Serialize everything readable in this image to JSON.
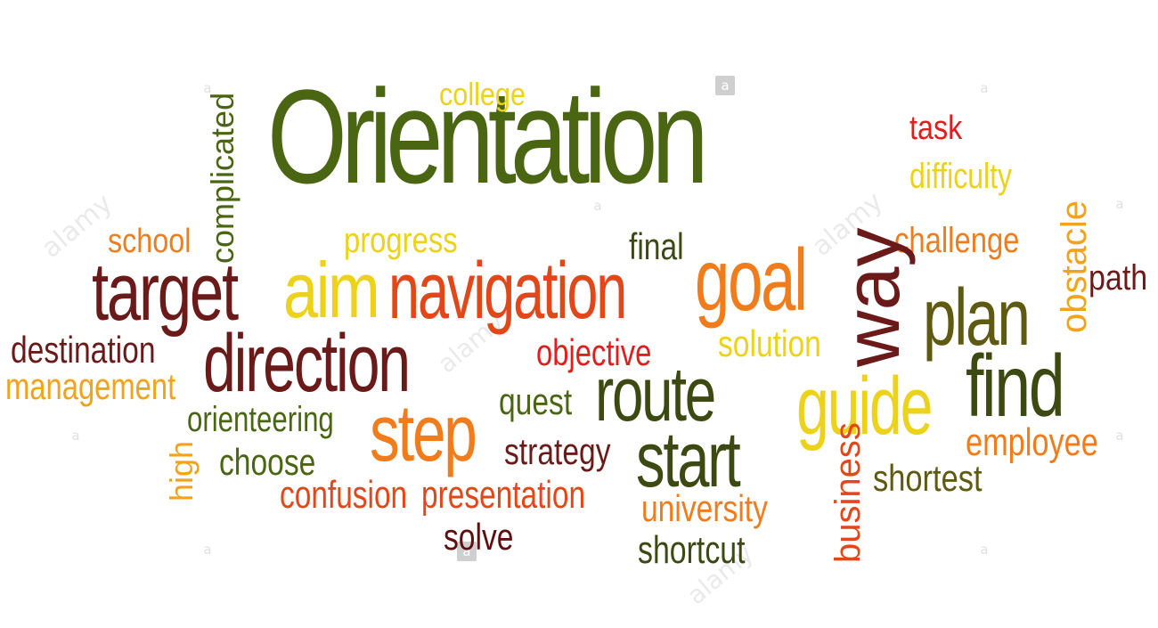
{
  "words": {
    "orientation": "Orientation",
    "college": "college",
    "task": "task",
    "difficulty": "difficulty",
    "complicated": "complicated",
    "school": "school",
    "progress": "progress",
    "final": "final",
    "challenge": "challenge",
    "obstacle": "obstacle",
    "path": "path",
    "target": "target",
    "aim": "aim",
    "navigation": "navigation",
    "goal": "goal",
    "way": "way",
    "plan": "plan",
    "destination": "destination",
    "management": "management",
    "direction": "direction",
    "objective": "objective",
    "solution": "solution",
    "route": "route",
    "guide": "guide",
    "find": "find",
    "quest": "quest",
    "orienteering": "orienteering",
    "step": "step",
    "start": "start",
    "employee": "employee",
    "high": "high",
    "choose": "choose",
    "strategy": "strategy",
    "business": "business",
    "shortest": "shortest",
    "confusion": "confusion",
    "presentation": "presentation",
    "university": "university",
    "solve": "solve",
    "shortcut": "shortcut"
  },
  "watermark": {
    "brand": "alamy",
    "letter": "a"
  },
  "colors": {
    "olive": "#4a6612",
    "dark_green": "#3c4a12",
    "olive_brown": "#5f5a12",
    "maroon": "#6b1a1a",
    "dark_red": "#5c1010",
    "red": "#e01e1e",
    "orange_red": "#e2471a",
    "orange": "#f07c1c",
    "amber": "#f2a31c",
    "yellow": "#ecd21a"
  }
}
